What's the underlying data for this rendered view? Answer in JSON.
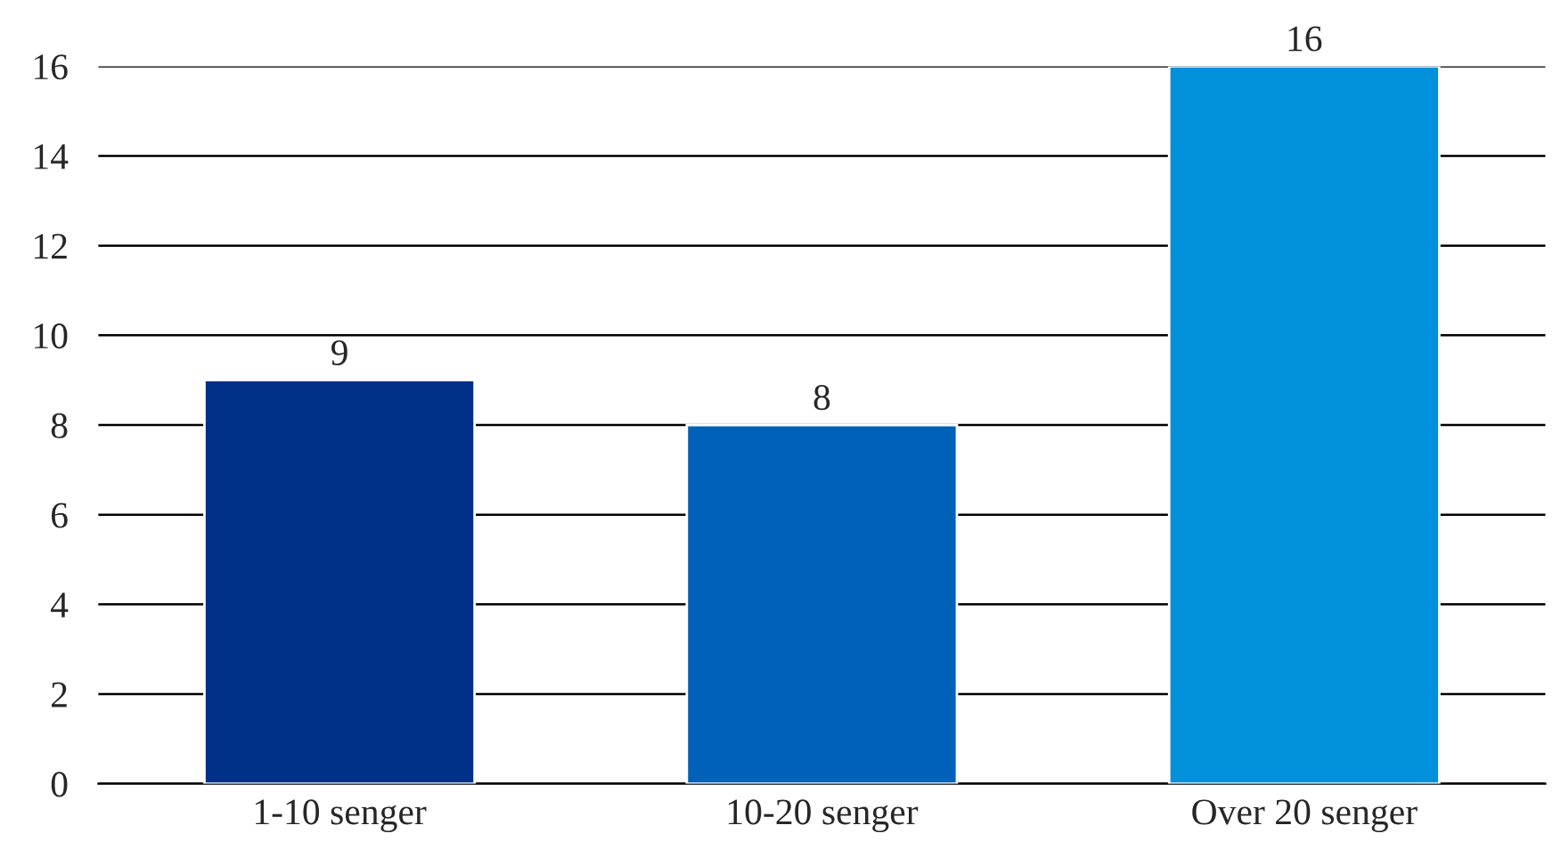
{
  "chart_data": {
    "type": "bar",
    "categories": [
      "1-10 senger",
      "10-20 senger",
      "Over 20 senger"
    ],
    "values": [
      9,
      8,
      16
    ],
    "colors": [
      "#003087",
      "#0061b8",
      "#0091da"
    ],
    "ylim": [
      0,
      16
    ],
    "yticks": [
      0,
      2,
      4,
      6,
      8,
      10,
      12,
      14,
      16
    ],
    "grid": "y",
    "data_labels": true
  }
}
